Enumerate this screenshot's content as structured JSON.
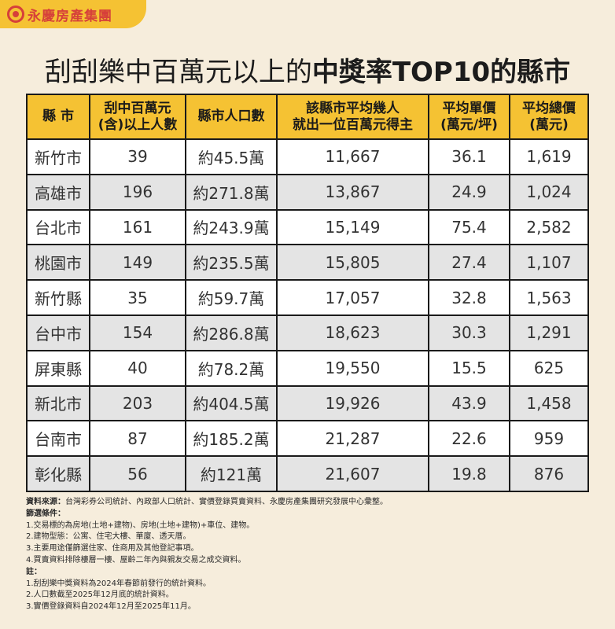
{
  "brand": {
    "logo_text": "永慶房產集團"
  },
  "title": {
    "normal": "刮刮樂中百萬元以上的",
    "bold": "中獎率TOP10的縣市"
  },
  "table": {
    "headers": [
      [
        "縣 市"
      ],
      [
        "刮中百萬元",
        "(含)以上人數"
      ],
      [
        "縣市人口數"
      ],
      [
        "該縣市平均幾人",
        "就出一位百萬元得主"
      ],
      [
        "平均單價",
        "(萬元/坪)"
      ],
      [
        "平均總價",
        "(萬元)"
      ]
    ],
    "rows": [
      [
        "新竹市",
        "39",
        "約45.5萬",
        "11,667",
        "36.1",
        "1,619"
      ],
      [
        "高雄市",
        "196",
        "約271.8萬",
        "13,867",
        "24.9",
        "1,024"
      ],
      [
        "台北市",
        "161",
        "約243.9萬",
        "15,149",
        "75.4",
        "2,582"
      ],
      [
        "桃園市",
        "149",
        "約235.5萬",
        "15,805",
        "27.4",
        "1,107"
      ],
      [
        "新竹縣",
        "35",
        "約59.7萬",
        "17,057",
        "32.8",
        "1,563"
      ],
      [
        "台中市",
        "154",
        "約286.8萬",
        "18,623",
        "30.3",
        "1,291"
      ],
      [
        "屏東縣",
        "40",
        "約78.2萬",
        "19,550",
        "15.5",
        "625"
      ],
      [
        "新北市",
        "203",
        "約404.5萬",
        "19,926",
        "43.9",
        "1,458"
      ],
      [
        "台南市",
        "87",
        "約185.2萬",
        "21,287",
        "22.6",
        "959"
      ],
      [
        "彰化縣",
        "56",
        "約121萬",
        "21,607",
        "19.8",
        "876"
      ]
    ]
  },
  "notes": {
    "source_label": "資料來源：",
    "source_text": "台灣彩券公司統計、內政部人口統計、實價登錄買賣資料、永慶房產集團研究發展中心彙整。",
    "filter_label": "篩選條件：",
    "filter_items": [
      "1.交易標的為房地(土地+建物)、房地(土地+建物)+車位、建物。",
      "2.建物型態：公寓、住宅大樓、華廈、透天厝。",
      "3.主要用途僅篩選住家、住商用及其他登記事項。",
      "4.買賣資料排除樓層一樓、屋齡二年內與親友交易之成交資料。"
    ],
    "remark_label": "註：",
    "remark_items": [
      "1.刮刮樂中獎資料為2024年春節前發行的統計資料。",
      "2.人口數截至2025年12月底的統計資料。",
      "3.實價登錄資料自2024年12月至2025年11月。"
    ]
  }
}
